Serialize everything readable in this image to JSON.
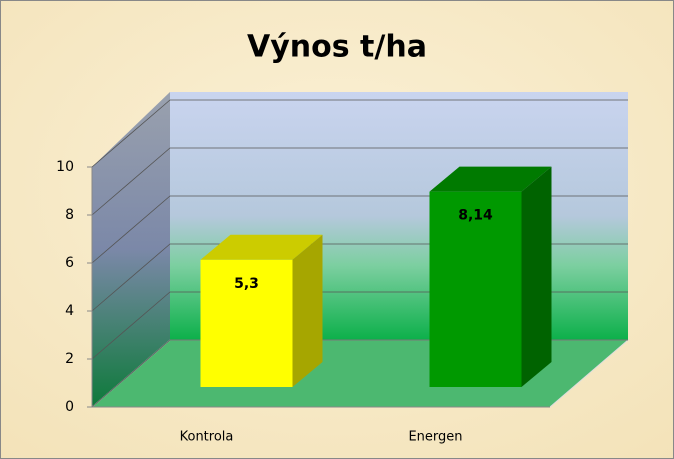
{
  "chart_data": {
    "type": "bar",
    "title": "Výnos t/ha",
    "categories": [
      "Kontrola",
      "Energen"
    ],
    "values": [
      5.3,
      8.14
    ],
    "value_labels": [
      "5,3",
      "8,14"
    ],
    "colors": [
      "#ffff00",
      "#009900"
    ],
    "ylim": [
      0,
      10
    ],
    "yticks": [
      0,
      2,
      4,
      6,
      8,
      10
    ],
    "grid": true
  }
}
